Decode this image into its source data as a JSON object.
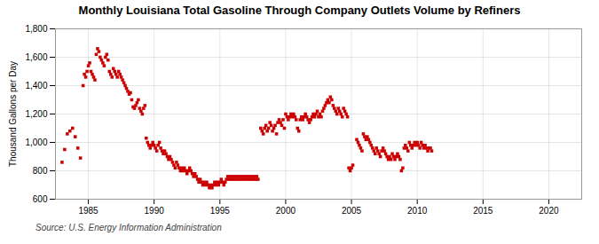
{
  "chart_data": {
    "type": "scatter",
    "title": "Monthly Louisiana Total Gasoline Through Company Outlets Volume by Refiners",
    "ylabel": "Thousand Gallons per Day",
    "source": "Source: U.S. Energy Information Administration",
    "color": "#cc0000",
    "marker": "square",
    "grid": true,
    "xlim": [
      1982.5,
      2022.5
    ],
    "ylim": [
      600,
      1800
    ],
    "xticks": [
      1985,
      1990,
      1995,
      2000,
      2005,
      2010,
      2015,
      2020
    ],
    "yticks": [
      600,
      800,
      {
        "value": 1000,
        "label": "1,000"
      },
      {
        "value": 1200,
        "label": "1,200"
      },
      {
        "value": 1400,
        "label": "1,400"
      },
      {
        "value": 1600,
        "label": "1,600"
      },
      {
        "value": 1800,
        "label": "1,800"
      }
    ],
    "x": [
      1983.0,
      1983.2,
      1983.4,
      1983.6,
      1983.8,
      1984.0,
      1984.2,
      1984.4,
      1984.6,
      1984.7,
      1984.8,
      1984.9,
      1985.0,
      1985.1,
      1985.2,
      1985.3,
      1985.4,
      1985.5,
      1985.6,
      1985.7,
      1985.8,
      1985.9,
      1986.0,
      1986.1,
      1986.2,
      1986.3,
      1986.4,
      1986.5,
      1986.6,
      1986.7,
      1986.8,
      1986.9,
      1987.0,
      1987.1,
      1987.2,
      1987.3,
      1987.4,
      1987.5,
      1987.6,
      1987.7,
      1987.8,
      1987.9,
      1988.0,
      1988.1,
      1988.2,
      1988.3,
      1988.4,
      1988.5,
      1988.6,
      1988.7,
      1988.8,
      1988.9,
      1989.0,
      1989.1,
      1989.2,
      1989.3,
      1989.4,
      1989.5,
      1989.6,
      1989.7,
      1989.8,
      1989.9,
      1990.0,
      1990.1,
      1990.2,
      1990.3,
      1990.4,
      1990.5,
      1990.6,
      1990.7,
      1990.8,
      1990.9,
      1991.0,
      1991.1,
      1991.2,
      1991.3,
      1991.4,
      1991.5,
      1991.6,
      1991.7,
      1991.8,
      1991.9,
      1992.0,
      1992.1,
      1992.2,
      1992.3,
      1992.4,
      1992.5,
      1992.6,
      1992.7,
      1992.8,
      1992.9,
      1993.0,
      1993.1,
      1993.2,
      1993.3,
      1993.4,
      1993.5,
      1993.6,
      1993.7,
      1993.8,
      1993.9,
      1994.0,
      1994.1,
      1994.2,
      1994.3,
      1994.4,
      1994.5,
      1994.6,
      1994.7,
      1994.8,
      1994.9,
      1995.0,
      1995.1,
      1995.2,
      1995.3,
      1995.4,
      1995.5,
      1995.6,
      1995.7,
      1995.8,
      1995.9,
      1996.0,
      1996.1,
      1996.2,
      1996.3,
      1996.4,
      1996.5,
      1996.6,
      1996.7,
      1996.8,
      1996.9,
      1997.0,
      1997.1,
      1997.2,
      1997.3,
      1997.4,
      1997.5,
      1997.6,
      1997.7,
      1997.8,
      1997.9,
      1998.1,
      1998.2,
      1998.3,
      1998.4,
      1998.5,
      1998.6,
      1998.7,
      1998.8,
      1998.9,
      1999.0,
      1999.1,
      1999.2,
      1999.3,
      1999.4,
      1999.5,
      1999.6,
      1999.7,
      1999.8,
      1999.9,
      2000.0,
      2000.1,
      2000.2,
      2000.3,
      2000.4,
      2000.5,
      2000.6,
      2000.7,
      2000.8,
      2000.9,
      2001.0,
      2001.1,
      2001.2,
      2001.3,
      2001.4,
      2001.5,
      2001.6,
      2001.7,
      2001.8,
      2001.9,
      2002.0,
      2002.1,
      2002.2,
      2002.3,
      2002.4,
      2002.5,
      2002.6,
      2002.7,
      2002.8,
      2002.9,
      2003.0,
      2003.1,
      2003.2,
      2003.3,
      2003.4,
      2003.5,
      2003.6,
      2003.7,
      2003.8,
      2003.9,
      2004.0,
      2004.1,
      2004.2,
      2004.3,
      2004.4,
      2004.5,
      2004.6,
      2004.7,
      2004.8,
      2004.9,
      2005.0,
      2005.1,
      2005.4,
      2005.5,
      2005.6,
      2005.7,
      2005.8,
      2005.9,
      2006.0,
      2006.1,
      2006.2,
      2006.3,
      2006.4,
      2006.5,
      2006.6,
      2006.7,
      2006.8,
      2006.9,
      2007.0,
      2007.1,
      2007.2,
      2007.3,
      2007.4,
      2007.5,
      2007.6,
      2007.7,
      2007.8,
      2007.9,
      2008.0,
      2008.1,
      2008.2,
      2008.3,
      2008.4,
      2008.5,
      2008.6,
      2008.7,
      2008.8,
      2008.9,
      2009.0,
      2009.1,
      2009.2,
      2009.3,
      2009.4,
      2009.5,
      2009.6,
      2009.7,
      2009.8,
      2009.9,
      2010.0,
      2010.1,
      2010.2,
      2010.3,
      2010.4,
      2010.5,
      2010.6,
      2010.7,
      2010.8,
      2010.9,
      2011.0,
      2011.1
    ],
    "values": [
      860,
      950,
      1060,
      1080,
      1100,
      1040,
      960,
      890,
      1400,
      1480,
      1460,
      1500,
      1540,
      1560,
      1500,
      1480,
      1460,
      1440,
      1620,
      1660,
      1640,
      1600,
      1580,
      1560,
      1540,
      1600,
      1620,
      1580,
      1500,
      1480,
      1460,
      1520,
      1500,
      1480,
      1460,
      1500,
      1480,
      1460,
      1440,
      1420,
      1400,
      1380,
      1360,
      1340,
      1350,
      1300,
      1250,
      1240,
      1260,
      1280,
      1300,
      1240,
      1220,
      1200,
      1240,
      1260,
      1030,
      1000,
      980,
      960,
      980,
      1000,
      980,
      960,
      940,
      980,
      1000,
      960,
      940,
      920,
      940,
      920,
      900,
      880,
      900,
      880,
      860,
      840,
      820,
      860,
      840,
      820,
      800,
      820,
      800,
      820,
      800,
      780,
      800,
      820,
      800,
      780,
      760,
      780,
      760,
      740,
      720,
      740,
      720,
      700,
      720,
      700,
      720,
      700,
      680,
      700,
      680,
      700,
      720,
      700,
      720,
      700,
      720,
      740,
      720,
      700,
      720,
      740,
      760,
      740,
      760,
      740,
      760,
      740,
      760,
      740,
      760,
      740,
      760,
      740,
      760,
      740,
      760,
      740,
      760,
      740,
      760,
      740,
      760,
      740,
      760,
      740,
      1100,
      1080,
      1060,
      1100,
      1120,
      1080,
      1100,
      1140,
      1120,
      1080,
      1100,
      1120,
      1060,
      1140,
      1160,
      1140,
      1120,
      1160,
      1100,
      1200,
      1180,
      1160,
      1180,
      1200,
      1180,
      1200,
      1180,
      1160,
      1100,
      1080,
      1160,
      1180,
      1160,
      1180,
      1200,
      1180,
      1160,
      1140,
      1160,
      1180,
      1200,
      1180,
      1200,
      1220,
      1180,
      1200,
      1180,
      1220,
      1240,
      1260,
      1280,
      1300,
      1280,
      1320,
      1300,
      1260,
      1240,
      1220,
      1200,
      1240,
      1220,
      1200,
      1180,
      1240,
      1220,
      1200,
      1180,
      820,
      800,
      820,
      840,
      1020,
      1000,
      980,
      960,
      940,
      1060,
      1040,
      1020,
      1040,
      1020,
      1000,
      980,
      960,
      940,
      920,
      960,
      940,
      920,
      900,
      940,
      960,
      940,
      920,
      900,
      880,
      900,
      880,
      920,
      900,
      880,
      900,
      920,
      900,
      880,
      800,
      820,
      960,
      980,
      960,
      940,
      1000,
      980,
      960,
      980,
      1000,
      980,
      1000,
      980,
      960,
      1000,
      980,
      960,
      980,
      960,
      940,
      960,
      960,
      940
    ]
  }
}
